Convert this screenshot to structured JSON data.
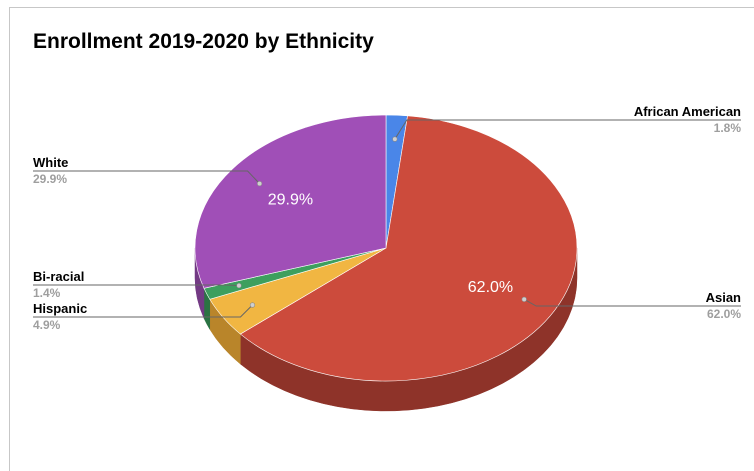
{
  "chart_data": {
    "type": "pie",
    "title": "Enrollment 2019-2020 by Ethnicity",
    "three_d": true,
    "slices": [
      {
        "label": "African American",
        "value": 1.8,
        "display": "1.8%",
        "color": "#4a86e8",
        "side_color": "#3763b4",
        "label_side": "right",
        "inner_label": ""
      },
      {
        "label": "Asian",
        "value": 62.0,
        "display": "62.0%",
        "color": "#cc4b3c",
        "side_color": "#8e3329",
        "label_side": "right",
        "inner_label": "62.0%"
      },
      {
        "label": "Hispanic",
        "value": 4.9,
        "display": "4.9%",
        "color": "#f1b642",
        "side_color": "#b9852a",
        "label_side": "left",
        "inner_label": ""
      },
      {
        "label": "Bi-racial",
        "value": 1.4,
        "display": "1.4%",
        "color": "#3d9f5e",
        "side_color": "#2a7343",
        "label_side": "left",
        "inner_label": ""
      },
      {
        "label": "White",
        "value": 29.9,
        "display": "29.9%",
        "color": "#a04fb7",
        "side_color": "#733a84",
        "label_side": "left",
        "inner_label": "29.9%"
      }
    ],
    "legend": "none",
    "grid": false
  }
}
